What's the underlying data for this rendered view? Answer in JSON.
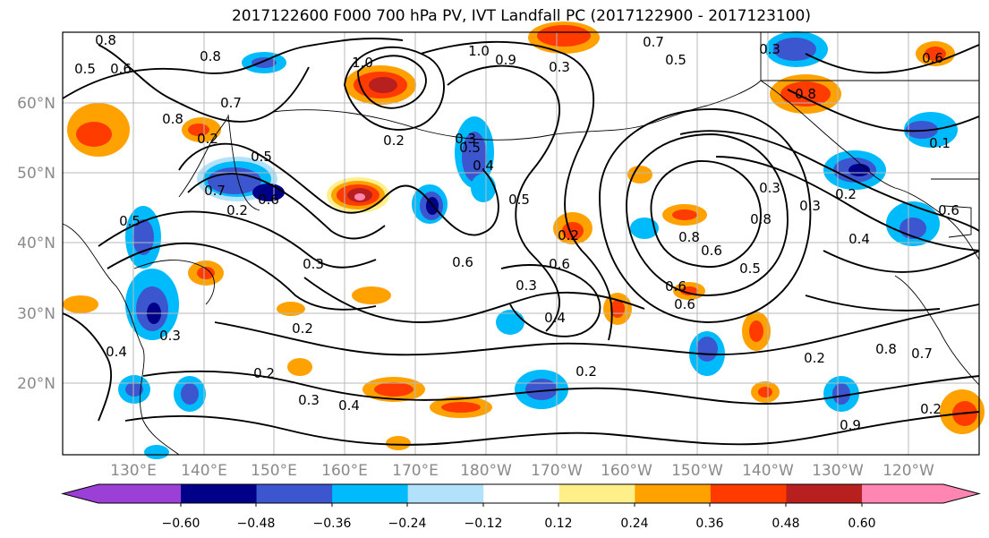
{
  "title": "2017122600 F000 700 hPa PV, IVT Landfall PC (2017122900 - 2017123100)",
  "lat_labels": [
    "60°N",
    "50°N",
    "40°N",
    "30°N",
    "20°N"
  ],
  "lon_labels": [
    "130°E",
    "140°E",
    "150°E",
    "160°E",
    "170°E",
    "180°W",
    "170°W",
    "160°W",
    "150°W",
    "140°W",
    "130°W",
    "120°W"
  ],
  "colorbar": {
    "colors": [
      "#9b3fd6",
      "#000088",
      "#3b56cf",
      "#00bbfb",
      "#b2e2fb",
      "#ffffff",
      "#ffef88",
      "#ffa200",
      "#ff3b00",
      "#b82020",
      "#ff86b2"
    ],
    "tick_labels": [
      "−0.60",
      "−0.48",
      "−0.36",
      "−0.24",
      "−0.12",
      "0.12",
      "0.24",
      "0.36",
      "0.48",
      "0.60"
    ]
  },
  "contour_labels": [
    "0.8",
    "0.5",
    "0.6",
    "0.8",
    "1.0",
    "1.0",
    "0.9",
    "0.3",
    "0.7",
    "0.5",
    "0.3",
    "0.7",
    "0.8",
    "0.2",
    "0.5",
    "0.6",
    "0.7",
    "0.2",
    "0.5",
    "0.2",
    "0.3",
    "0.4",
    "0.5",
    "0.6",
    "0.2",
    "0.6",
    "0.3",
    "0.4",
    "0.2",
    "0.3",
    "0.4",
    "0.3",
    "0.2",
    "0.3",
    "0.4",
    "0.2",
    "0.5",
    "0.6",
    "0.8",
    "0.6",
    "0.3",
    "0.4",
    "0.2",
    "0.6",
    "0.8",
    "0.5",
    "0.3",
    "0.6",
    "0.8",
    "0.6",
    "0.1",
    "0.2",
    "0.7",
    "0.2",
    "0.8",
    "0.9"
  ],
  "palette": {
    "neg_strong": "#000088",
    "neg_mid": "#3b56cf",
    "neg": "#00bbfb",
    "neg_light": "#b2e2fb",
    "pos_light": "#ffef88",
    "pos": "#ffa200",
    "pos_mid": "#ff3b00",
    "pos_strong": "#b82020",
    "pos_max": "#ff86b2"
  }
}
